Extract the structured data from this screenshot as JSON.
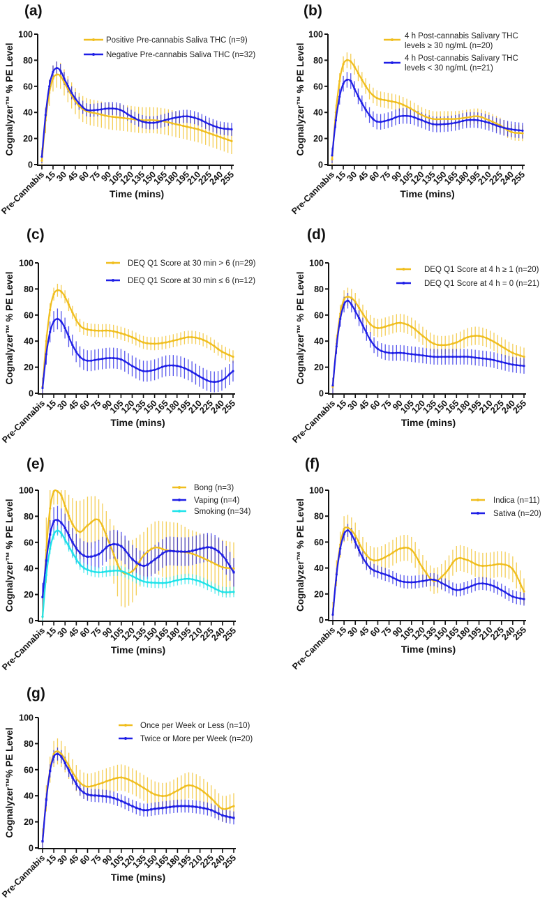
{
  "chart_data": [
    {
      "panel": "(a)",
      "type": "line",
      "xlabel": "Time (mins)",
      "ylabel": "Cognalyzer™ % PE Level",
      "ylim": [
        0,
        100
      ],
      "yticks": [
        "0",
        "20",
        "40",
        "60",
        "80",
        "100"
      ],
      "x_tick_labels": [
        "Pre-Cannabis",
        "15",
        "30",
        "45",
        "60",
        "75",
        "90",
        "105",
        "120",
        "135",
        "150",
        "165",
        "180",
        "195",
        "210",
        "225",
        "240",
        "255"
      ],
      "x_key_times": [
        0,
        5,
        10,
        15,
        20,
        25,
        30,
        40,
        50,
        60,
        75,
        90,
        105,
        120,
        135,
        150,
        165,
        180,
        195,
        210,
        225,
        240,
        255
      ],
      "series": [
        {
          "legend_lines": [
            "Positive Pre-cannabis Saliva THC (n=9)"
          ],
          "color": "#F0BE1E",
          "marker": "circle",
          "values": [
            3,
            34,
            55,
            66,
            69,
            68,
            63,
            53,
            45,
            41,
            39,
            37,
            36,
            35,
            34,
            34,
            33,
            31,
            29,
            27,
            24,
            21,
            18
          ],
          "error": 10
        },
        {
          "legend_lines": [
            "Negative Pre-cannabis Saliva THC (n=32)"
          ],
          "color": "#1E1EE6",
          "marker": "triangle",
          "values": [
            6,
            38,
            60,
            71,
            74,
            72,
            66,
            55,
            47,
            42,
            42,
            43,
            42,
            37,
            33,
            32,
            34,
            36,
            37,
            35,
            31,
            28,
            27
          ],
          "error": 5
        }
      ]
    },
    {
      "panel": "(b)",
      "type": "line",
      "xlabel": "Time (mins)",
      "ylabel": "Cognalyzer™ % PE Level",
      "ylim": [
        0,
        100
      ],
      "yticks": [
        "0",
        "20",
        "40",
        "60",
        "80",
        "100"
      ],
      "x_tick_labels": [
        "Pre-Cannabis",
        "15",
        "30",
        "45",
        "60",
        "75",
        "90",
        "105",
        "120",
        "135",
        "150",
        "165",
        "180",
        "195",
        "210",
        "225",
        "240",
        "255"
      ],
      "x_key_times": [
        0,
        5,
        10,
        15,
        20,
        25,
        30,
        40,
        50,
        60,
        75,
        90,
        105,
        120,
        135,
        150,
        165,
        180,
        195,
        210,
        225,
        240,
        255
      ],
      "series": [
        {
          "legend_lines": [
            "4 h Post-cannabis Salivary THC",
            "levels ≥ 30 ng/mL (n=20)"
          ],
          "color": "#F0BE1E",
          "marker": "circle",
          "values": [
            4,
            40,
            64,
            77,
            80,
            79,
            75,
            65,
            56,
            51,
            49,
            47,
            43,
            38,
            35,
            35,
            35,
            36,
            37,
            34,
            30,
            25,
            24
          ],
          "error": 6
        },
        {
          "legend_lines": [
            "4 h Post-cannabis Salivary THC",
            "levels < 30 ng/mL (n=21)"
          ],
          "color": "#1E1EE6",
          "marker": "triangle",
          "values": [
            7,
            34,
            52,
            62,
            65,
            64,
            58,
            47,
            38,
            33,
            34,
            37,
            37,
            34,
            31,
            31,
            32,
            34,
            34,
            32,
            29,
            27,
            26
          ],
          "error": 6
        }
      ]
    },
    {
      "panel": "(c)",
      "type": "line",
      "xlabel": "Time (mins)",
      "ylabel": "Cognalyzer™ % PE Level",
      "ylim": [
        0,
        100
      ],
      "yticks": [
        "0",
        "20",
        "40",
        "60",
        "80",
        "100"
      ],
      "x_tick_labels": [
        "Pre-Cannabis",
        "15",
        "30",
        "45",
        "60",
        "75",
        "90",
        "105",
        "120",
        "135",
        "150",
        "165",
        "180",
        "195",
        "210",
        "225",
        "240",
        "255"
      ],
      "x_key_times": [
        0,
        5,
        10,
        15,
        20,
        25,
        30,
        40,
        50,
        60,
        75,
        90,
        105,
        120,
        135,
        150,
        165,
        180,
        195,
        210,
        225,
        240,
        255
      ],
      "series": [
        {
          "legend_lines": [
            "DEQ Q1 Score at 30 min > 6 (n=29)"
          ],
          "color": "#F0BE1E",
          "marker": "circle",
          "values": [
            5,
            40,
            64,
            76,
            79,
            78,
            74,
            62,
            52,
            49,
            48,
            48,
            46,
            43,
            39,
            38,
            39,
            41,
            43,
            42,
            38,
            32,
            28
          ],
          "error": 5
        },
        {
          "legend_lines": [
            "DEQ Q1 Score at 30 min ≤ 6 (n=12)"
          ],
          "color": "#1E1EE6",
          "marker": "triangle",
          "values": [
            4,
            30,
            47,
            55,
            57,
            55,
            50,
            37,
            28,
            25,
            26,
            27,
            26,
            21,
            17,
            18,
            21,
            21,
            18,
            13,
            9,
            10,
            17
          ],
          "error": 8
        }
      ]
    },
    {
      "panel": "(d)",
      "type": "line",
      "xlabel": "Time (mins)",
      "ylabel": "Cognalyzer™ % PE Level",
      "ylim": [
        0,
        100
      ],
      "yticks": [
        "0",
        "20",
        "40",
        "60",
        "80",
        "100"
      ],
      "x_tick_labels": [
        "Pre-Cannabis",
        "15",
        "30",
        "45",
        "60",
        "75",
        "90",
        "105",
        "120",
        "135",
        "150",
        "165",
        "180",
        "195",
        "210",
        "225",
        "240",
        "255"
      ],
      "x_key_times": [
        0,
        5,
        10,
        15,
        20,
        25,
        30,
        40,
        50,
        60,
        75,
        90,
        105,
        120,
        135,
        150,
        165,
        180,
        195,
        210,
        225,
        240,
        255
      ],
      "series": [
        {
          "legend_lines": [
            "DEQ Q1 Score at 4 h ≥ 1 (n=20)"
          ],
          "color": "#F0BE1E",
          "marker": "circle",
          "values": [
            5,
            38,
            61,
            72,
            74,
            73,
            70,
            61,
            53,
            50,
            52,
            54,
            51,
            44,
            38,
            37,
            39,
            43,
            44,
            41,
            36,
            31,
            28
          ],
          "error": 7
        },
        {
          "legend_lines": [
            "DEQ Q1 Score at 4 h = 0 (n=21)"
          ],
          "color": "#1E1EE6",
          "marker": "triangle",
          "values": [
            6,
            36,
            57,
            68,
            71,
            68,
            63,
            52,
            41,
            34,
            31,
            31,
            30,
            29,
            28,
            28,
            28,
            28,
            27,
            26,
            24,
            22,
            21
          ],
          "error": 6
        }
      ]
    },
    {
      "panel": "(e)",
      "type": "line",
      "xlabel": "Time (mins)",
      "ylabel": "Cognalyzer™ % PE Level",
      "ylim": [
        0,
        100
      ],
      "yticks": [
        "0",
        "20",
        "40",
        "60",
        "80",
        "100"
      ],
      "x_tick_labels": [
        "Pre-Cannabis",
        "15",
        "30",
        "45",
        "60",
        "75",
        "90",
        "105",
        "120",
        "135",
        "150",
        "165",
        "180",
        "195",
        "210",
        "225",
        "240",
        "255"
      ],
      "x_key_times": [
        0,
        5,
        10,
        15,
        20,
        25,
        30,
        40,
        50,
        60,
        75,
        90,
        105,
        120,
        135,
        150,
        165,
        180,
        195,
        210,
        225,
        240,
        255
      ],
      "series": [
        {
          "legend_lines": [
            "Bong (n=3)"
          ],
          "color": "#F0BE1E",
          "marker": "circle",
          "values": [
            3,
            54,
            86,
            99,
            99,
            96,
            88,
            74,
            68,
            73,
            77,
            58,
            38,
            38,
            50,
            56,
            54,
            53,
            52,
            49,
            45,
            41,
            40
          ],
          "error": [
            2,
            25,
            14,
            10,
            10,
            10,
            12,
            20,
            24,
            22,
            16,
            20,
            27,
            24,
            18,
            20,
            22,
            22,
            18,
            18,
            20,
            21,
            20
          ]
        },
        {
          "legend_lines": [
            "Vaping (n=4)"
          ],
          "color": "#1E1EE6",
          "marker": "square",
          "values": [
            18,
            46,
            66,
            76,
            77,
            75,
            71,
            60,
            52,
            49,
            51,
            58,
            57,
            47,
            42,
            47,
            53,
            53,
            53,
            55,
            56,
            50,
            37
          ],
          "error": 11
        },
        {
          "legend_lines": [
            "Smoking (n=34)"
          ],
          "color": "#1EE3EA",
          "marker": "triangle",
          "values": [
            3,
            35,
            55,
            66,
            69,
            67,
            62,
            52,
            43,
            39,
            37,
            38,
            38,
            34,
            30,
            29,
            29,
            31,
            32,
            30,
            26,
            22,
            22
          ],
          "error": 4
        }
      ]
    },
    {
      "panel": "(f)",
      "type": "line",
      "xlabel": "Time (mins)",
      "ylabel": "Cognalyzer™ % PE Level",
      "ylim": [
        0,
        100
      ],
      "yticks": [
        "0",
        "20",
        "40",
        "60",
        "80",
        "100"
      ],
      "x_tick_labels": [
        "Pre-Cannabis",
        "15",
        "30",
        "45",
        "60",
        "75",
        "90",
        "105",
        "120",
        "135",
        "150",
        "165",
        "180",
        "195",
        "210",
        "225",
        "240",
        "255"
      ],
      "x_key_times": [
        0,
        5,
        10,
        15,
        20,
        25,
        30,
        40,
        50,
        60,
        75,
        90,
        105,
        120,
        135,
        150,
        165,
        180,
        195,
        210,
        225,
        240,
        255
      ],
      "series": [
        {
          "legend_lines": [
            "Indica (n=11)"
          ],
          "color": "#F0BE1E",
          "marker": "circle",
          "values": [
            4,
            36,
            58,
            70,
            71,
            69,
            65,
            54,
            47,
            46,
            50,
            55,
            54,
            40,
            30,
            36,
            47,
            46,
            42,
            42,
            43,
            39,
            22
          ],
          "error": 10
        },
        {
          "legend_lines": [
            "Sativa (n=20)"
          ],
          "color": "#1E1EE6",
          "marker": "triangle",
          "values": [
            4,
            35,
            55,
            66,
            69,
            66,
            60,
            48,
            40,
            37,
            34,
            30,
            29,
            30,
            31,
            27,
            23,
            25,
            28,
            27,
            23,
            18,
            16
          ],
          "error": 5
        }
      ]
    },
    {
      "panel": "(g)",
      "type": "line",
      "xlabel": "Time (mins)",
      "ylabel": "Cognalyzer™% PE Level",
      "ylim": [
        0,
        100
      ],
      "yticks": [
        "0",
        "20",
        "40",
        "60",
        "80",
        "100"
      ],
      "x_tick_labels": [
        "Pre-Cannabis",
        "15",
        "30",
        "45",
        "60",
        "75",
        "90",
        "105",
        "120",
        "135",
        "150",
        "165",
        "180",
        "195",
        "210",
        "225",
        "240",
        "255"
      ],
      "x_key_times": [
        0,
        5,
        10,
        15,
        20,
        25,
        30,
        40,
        50,
        60,
        75,
        90,
        105,
        120,
        135,
        150,
        165,
        180,
        195,
        210,
        225,
        240,
        255
      ],
      "series": [
        {
          "legend_lines": [
            "Once per Week or Less (n=10)"
          ],
          "color": "#F0BE1E",
          "marker": "circle",
          "values": [
            5,
            38,
            60,
            72,
            74,
            72,
            68,
            58,
            50,
            47,
            49,
            52,
            54,
            51,
            46,
            41,
            40,
            44,
            48,
            45,
            38,
            30,
            32
          ],
          "error": 10
        },
        {
          "legend_lines": [
            "Twice or More per Week (n=20)"
          ],
          "color": "#1E1EE6",
          "marker": "square",
          "values": [
            5,
            37,
            59,
            70,
            72,
            70,
            65,
            54,
            45,
            41,
            40,
            39,
            36,
            32,
            29,
            30,
            31,
            32,
            32,
            31,
            29,
            25,
            23
          ],
          "error": 5
        }
      ]
    }
  ]
}
